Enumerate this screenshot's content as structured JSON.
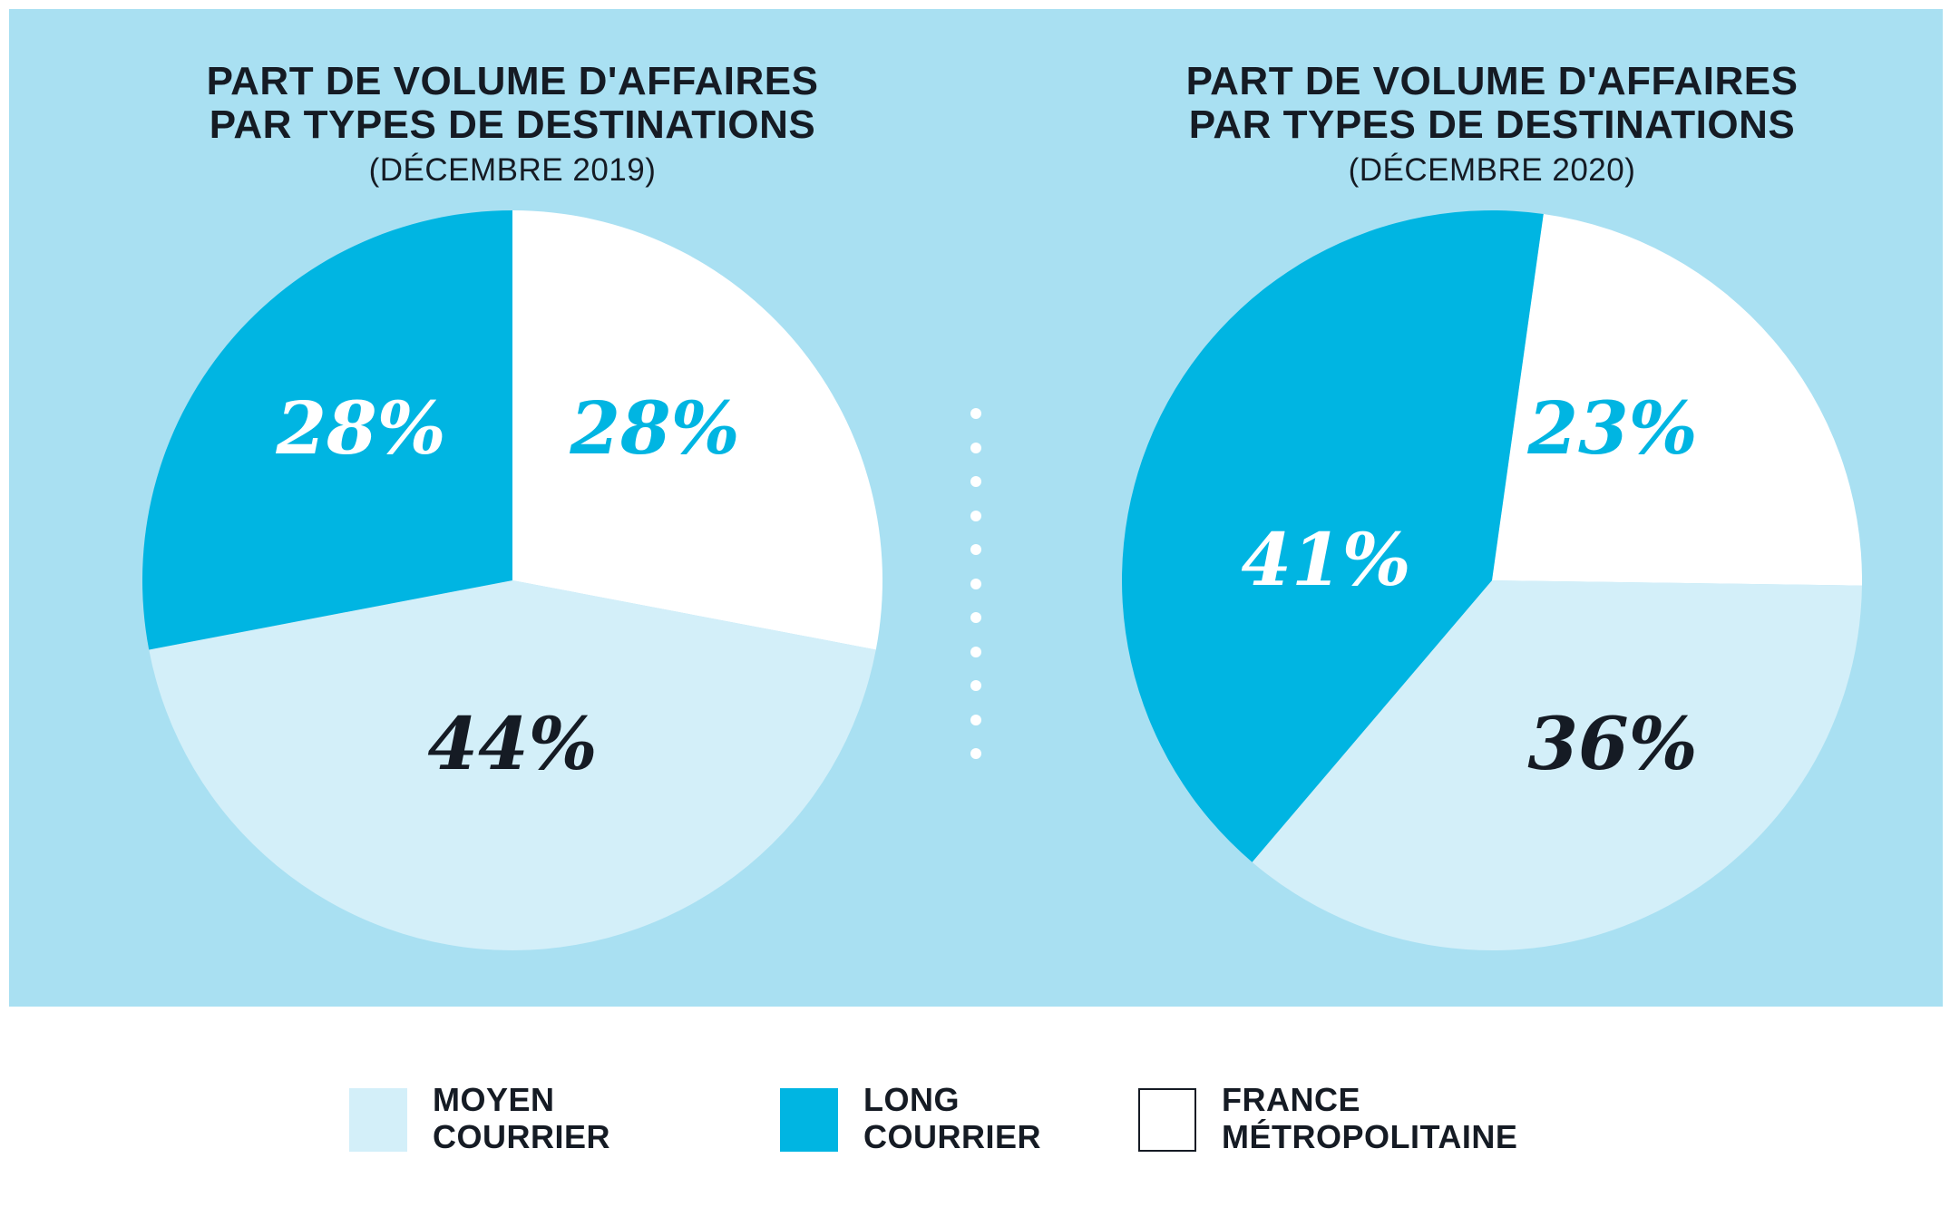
{
  "colors": {
    "background": "#a9e0f2",
    "moyen_courrier": "#d3eff9",
    "long_courrier": "#00b5e2",
    "france_metropolitaine": "#ffffff",
    "dark_text": "#151b24"
  },
  "chart_data": [
    {
      "type": "pie",
      "title_lines": [
        "PART DE VOLUME D'AFFAIRES",
        "PAR TYPES DE DESTINATIONS"
      ],
      "subtitle": "(DÉCEMBRE 2019)",
      "slices": [
        {
          "category": "FRANCE MÉTROPOLITAINE",
          "value": 28,
          "label": "28%"
        },
        {
          "category": "MOYEN COURRIER",
          "value": 44,
          "label": "44%"
        },
        {
          "category": "LONG COURRIER",
          "value": 28,
          "label": "28%"
        }
      ]
    },
    {
      "type": "pie",
      "title_lines": [
        "PART DE VOLUME D'AFFAIRES",
        "PAR TYPES DE DESTINATIONS"
      ],
      "subtitle": "(DÉCEMBRE 2020)",
      "slices": [
        {
          "category": "FRANCE MÉTROPOLITAINE",
          "value": 23,
          "label": "23%"
        },
        {
          "category": "MOYEN COURRIER",
          "value": 36,
          "label": "36%"
        },
        {
          "category": "LONG COURRIER",
          "value": 41,
          "label": "41%"
        }
      ]
    }
  ],
  "legend": [
    {
      "key": "moyen_courrier",
      "lines": [
        "MOYEN",
        "COURRIER"
      ]
    },
    {
      "key": "long_courrier",
      "lines": [
        "LONG",
        "COURRIER"
      ]
    },
    {
      "key": "france_metropolitaine",
      "lines": [
        "FRANCE",
        "MÉTROPOLITAINE"
      ]
    }
  ]
}
